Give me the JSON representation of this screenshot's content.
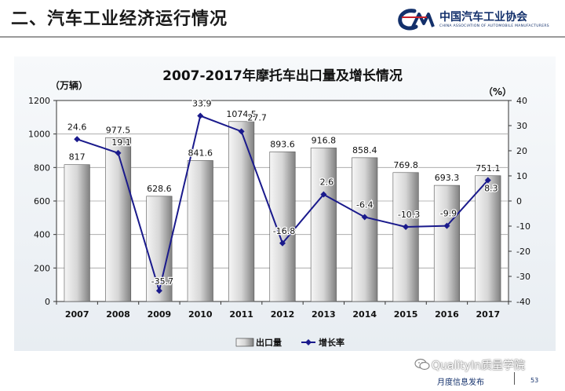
{
  "slide": {
    "title": "二、汽车工业经济运行情况",
    "logo_name": "中国汽车工业协会",
    "logo_sub": "CHINA ASSOCIATION OF AUTOMOBILE MANUFACTURERS",
    "logo_icon": "caam-logo",
    "footer_text": "月度信息发布",
    "page_number": "53",
    "watermark": "QualityIn质量学院",
    "watermark_icon": "wechat-icon"
  },
  "colors": {
    "bar_light": "#f6f6f6",
    "bar_dark": "#808080",
    "line": "#1a1a8c",
    "grid": "#a0a0a0",
    "title_rule": "#9a9a9a",
    "brand": "#13306b"
  },
  "chart_data": {
    "type": "bar+line",
    "title": "2007-2017年摩托车出口量及增长情况",
    "categories": [
      "2007",
      "2008",
      "2009",
      "2010",
      "2011",
      "2012",
      "2013",
      "2014",
      "2015",
      "2016",
      "2017"
    ],
    "left_axis": {
      "unit_label": "（万辆）",
      "min": 0,
      "max": 1200,
      "step": 200,
      "ticks": [
        "0",
        "200",
        "400",
        "600",
        "800",
        "1000",
        "1200"
      ]
    },
    "right_axis": {
      "unit_label": "（%）",
      "min": -40,
      "max": 40,
      "step": 10,
      "ticks": [
        "-40",
        "-30",
        "-20",
        "-10",
        "0",
        "10",
        "20",
        "30",
        "40"
      ]
    },
    "series": [
      {
        "name": "出口量",
        "type": "bar",
        "axis": "left",
        "values": [
          817,
          977.5,
          628.6,
          841.6,
          1074.5,
          893.6,
          916.8,
          858.4,
          769.8,
          693.3,
          751.1
        ],
        "labels": [
          "817",
          "977.5",
          "628.6",
          "841.6",
          "1074.5",
          "893.6",
          "916.8",
          "858.4",
          "769.8",
          "693.3",
          "751.1"
        ]
      },
      {
        "name": "增长率",
        "type": "line",
        "axis": "right",
        "values": [
          24.6,
          19.1,
          -35.7,
          33.9,
          27.7,
          -16.8,
          2.6,
          -6.4,
          -10.3,
          -9.9,
          8.3
        ],
        "labels": [
          "24.6",
          "19.1",
          "-35.7",
          "33.9",
          "27.7",
          "-16.8",
          "2.6",
          "-6.4",
          "-10.3",
          "-9.9",
          "8.3"
        ]
      }
    ],
    "grid": true,
    "legend_position": "bottom"
  }
}
